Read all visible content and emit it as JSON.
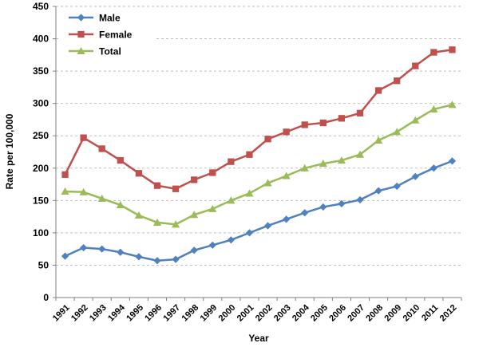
{
  "chart_data": {
    "type": "line",
    "title": "",
    "xlabel": "Year",
    "ylabel": "Rate per 100,000",
    "ylim": [
      0,
      450
    ],
    "ytick_step": 50,
    "grid": true,
    "legend_position": "top-left-inside",
    "categories": [
      "1991",
      "1992",
      "1993",
      "1994",
      "1995",
      "1996",
      "1997",
      "1998",
      "1999",
      "2000",
      "2001",
      "2002",
      "2003",
      "2004",
      "2005",
      "2006",
      "2007",
      "2008",
      "2009",
      "2010",
      "2011",
      "2012"
    ],
    "series": [
      {
        "name": "Male",
        "marker": "diamond",
        "color": "#4F81BD",
        "values": [
          64,
          77,
          75,
          70,
          63,
          57,
          59,
          73,
          81,
          89,
          100,
          111,
          121,
          131,
          140,
          145,
          151,
          165,
          172,
          187,
          200,
          211
        ]
      },
      {
        "name": "Female",
        "marker": "square",
        "color": "#C0504D",
        "values": [
          190,
          247,
          230,
          212,
          192,
          173,
          168,
          182,
          193,
          210,
          221,
          245,
          256,
          267,
          270,
          277,
          285,
          320,
          335,
          358,
          379,
          383
        ]
      },
      {
        "name": "Total",
        "marker": "triangle",
        "color": "#9BBB59",
        "values": [
          164,
          163,
          153,
          143,
          127,
          116,
          113,
          128,
          137,
          150,
          161,
          177,
          188,
          200,
          207,
          212,
          221,
          243,
          256,
          274,
          291,
          298
        ]
      }
    ],
    "colors": {
      "gridline": "#BFBFBF",
      "axis": "#808080",
      "text": "#000000",
      "background": "#FFFFFF"
    }
  }
}
